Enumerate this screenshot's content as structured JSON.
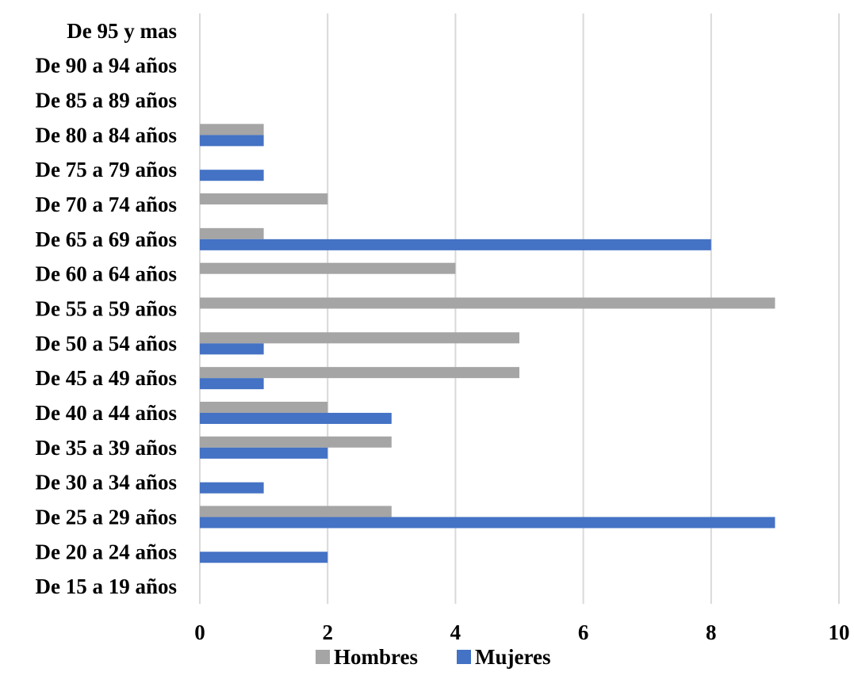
{
  "chart_data": {
    "type": "bar",
    "orientation": "horizontal",
    "categories": [
      "De 95 y mas",
      "De 90 a 94 años",
      "De 85 a 89 años",
      "De 80 a 84 años",
      "De 75 a 79 años",
      "De 70 a 74 años",
      "De 65 a 69 años",
      "De 60 a 64 años",
      "De 55 a 59 años",
      "De 50 a 54 años",
      "De 45 a 49 años",
      "De 40 a 44 años",
      "De 35 a 39 años",
      "De 30 a 34 años",
      "De 25 a 29 años",
      "De 20 a 24 años",
      "De 15 a 19 años"
    ],
    "series": [
      {
        "name": "Hombres",
        "color": "#a5a5a5",
        "values": [
          0,
          0,
          0,
          1,
          0,
          2,
          1,
          4,
          9,
          5,
          5,
          2,
          3,
          0,
          3,
          0,
          0
        ]
      },
      {
        "name": "Mujeres",
        "color": "#4472c4",
        "values": [
          0,
          0,
          0,
          1,
          1,
          0,
          8,
          0,
          0,
          1,
          1,
          3,
          2,
          1,
          9,
          2,
          0
        ]
      }
    ],
    "xlim": [
      0,
      10
    ],
    "xticks": [
      "0",
      "2",
      "4",
      "6",
      "8",
      "10"
    ],
    "grid": true,
    "legend_position": "bottom"
  }
}
